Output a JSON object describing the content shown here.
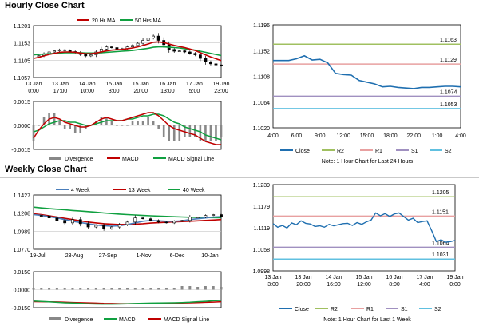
{
  "sections": {
    "hourly": {
      "title": "Hourly Close Chart"
    },
    "weekly": {
      "title": "Weekly Close Chart"
    }
  },
  "colors": {
    "ma_short": "#c00000",
    "ma_long": "#10a040",
    "close": "#1f6fb0",
    "r2": "#a0c060",
    "r1": "#e8a0a0",
    "s1": "#a090c0",
    "s2": "#60c0e0",
    "divergence": "#888888",
    "week4": "#4a7ebb"
  },
  "chart_data": [
    {
      "id": "hourly_price",
      "type": "candlestick",
      "ylim": [
        1.1057,
        1.1201
      ],
      "yticks": [
        "1.1201",
        "1.1153",
        "1.1105",
        "1.1057"
      ],
      "x_ticks": [
        "13 Jan\n0:00",
        "13 Jan\n17:00",
        "14 Jan\n10:00",
        "15 Jan\n3:00",
        "15 Jan\n20:00",
        "16 Jan\n13:00",
        "17 Jan\n5:00",
        "19 Jan\n23:00"
      ],
      "legend": [
        "20 Hr MA",
        "50 Hrs MA"
      ],
      "close": [
        1.1115,
        1.1118,
        1.1123,
        1.1128,
        1.1131,
        1.1134,
        1.1132,
        1.1129,
        1.1126,
        1.1121,
        1.1117,
        1.112,
        1.1128,
        1.1136,
        1.1142,
        1.114,
        1.1135,
        1.1137,
        1.1142,
        1.1146,
        1.1152,
        1.116,
        1.1167,
        1.1172,
        1.116,
        1.1148,
        1.1135,
        1.113,
        1.1131,
        1.1128,
        1.1124,
        1.112,
        1.111,
        1.11,
        1.1095,
        1.1092,
        1.1089
      ],
      "ma20": [
        1.111,
        1.1113,
        1.1117,
        1.1121,
        1.1124,
        1.1127,
        1.1128,
        1.1128,
        1.1127,
        1.1125,
        1.1123,
        1.1123,
        1.1125,
        1.1128,
        1.1131,
        1.1133,
        1.1134,
        1.1135,
        1.1137,
        1.1139,
        1.1142,
        1.1146,
        1.115,
        1.1155,
        1.1156,
        1.1154,
        1.115,
        1.1146,
        1.1143,
        1.114,
        1.1136,
        1.1132,
        1.1126,
        1.112,
        1.1114,
        1.1109,
        1.1104
      ],
      "ma50": [
        1.112,
        1.1121,
        1.1122,
        1.1123,
        1.1124,
        1.1125,
        1.1126,
        1.1126,
        1.1126,
        1.1126,
        1.1125,
        1.1125,
        1.1125,
        1.1126,
        1.1127,
        1.1128,
        1.1129,
        1.113,
        1.1131,
        1.1132,
        1.1134,
        1.1136,
        1.1138,
        1.1141,
        1.1142,
        1.1142,
        1.1141,
        1.114,
        1.1139,
        1.1137,
        1.1135,
        1.1133,
        1.113,
        1.1127,
        1.1124,
        1.1121,
        1.1118
      ]
    },
    {
      "id": "hourly_macd",
      "type": "line+bar",
      "ylim": [
        -0.0015,
        0.0015
      ],
      "yticks": [
        "0.0015",
        "0.0000",
        "-0.0015"
      ],
      "legend": [
        "Divergence",
        "MACD",
        "MACD Signal Line"
      ],
      "macd": [
        -0.0008,
        -0.0003,
        0.0001,
        0.0004,
        0.0005,
        0.0004,
        0.0002,
        0.0001,
        0.0,
        -0.0001,
        -0.0001,
        0.0,
        0.0002,
        0.0004,
        0.0005,
        0.0004,
        0.0003,
        0.0003,
        0.0004,
        0.0005,
        0.0006,
        0.0007,
        0.0008,
        0.0008,
        0.0006,
        0.0003,
        0.0,
        -0.0002,
        -0.0003,
        -0.0004,
        -0.0005,
        -0.0006,
        -0.0008,
        -0.001,
        -0.0011,
        -0.0012,
        -0.0012
      ],
      "signal": [
        -0.0004,
        -0.0003,
        -0.0001,
        0.0001,
        0.0002,
        0.0003,
        0.0003,
        0.0002,
        0.0002,
        0.0001,
        0.0,
        0.0,
        0.0001,
        0.0002,
        0.0003,
        0.0003,
        0.0003,
        0.0003,
        0.0004,
        0.0004,
        0.0005,
        0.0006,
        0.0006,
        0.0007,
        0.0007,
        0.0006,
        0.0004,
        0.0002,
        0.0001,
        -0.0001,
        -0.0002,
        -0.0003,
        -0.0004,
        -0.0006,
        -0.0007,
        -0.0008,
        -0.0009
      ]
    },
    {
      "id": "hourly_pivot",
      "type": "line",
      "ylim": [
        1.102,
        1.1196
      ],
      "yticks": [
        "1.1196",
        "1.1152",
        "1.1108",
        "1.1064",
        "1.1020"
      ],
      "x_ticks": [
        "4:00",
        "6:00",
        "9:00",
        "12:00",
        "15:00",
        "18:00",
        "22:00",
        "1:00",
        "4:00"
      ],
      "legend": [
        "Close",
        "R2",
        "R1",
        "S1",
        "S2"
      ],
      "note": "Note: 1 Hour Chart for Last 24 Hours",
      "levels": {
        "r2": 1.1163,
        "r1": 1.1129,
        "s1": 1.1074,
        "s2": 1.1053
      },
      "level_labels": {
        "r2": "1.1163",
        "r1": "1.1129",
        "s1": "1.1074",
        "s2": "1.1053"
      },
      "close": [
        1.1135,
        1.1135,
        1.1135,
        1.1138,
        1.1143,
        1.1136,
        1.1137,
        1.1131,
        1.1113,
        1.1111,
        1.111,
        1.1101,
        1.1098,
        1.1095,
        1.109,
        1.1091,
        1.1089,
        1.1088,
        1.1087,
        1.1089,
        1.1089,
        1.109,
        1.1091,
        1.1091,
        1.109
      ]
    },
    {
      "id": "weekly_price",
      "type": "candlestick",
      "ylim": [
        1.077,
        1.1427
      ],
      "yticks": [
        "1.1427",
        "1.1208",
        "1.0989",
        "1.0770"
      ],
      "x_ticks": [
        "19-Jul",
        "23-Aug",
        "27-Sep",
        "1-Nov",
        "6-Dec",
        "10-Jan"
      ],
      "legend": [
        "4 Week",
        "13 Week",
        "40 Week"
      ],
      "close": [
        1.118,
        1.1175,
        1.115,
        1.112,
        1.109,
        1.113,
        1.108,
        1.104,
        1.106,
        1.102,
        1.104,
        1.107,
        1.11,
        1.115,
        1.114,
        1.112,
        1.11,
        1.109,
        1.111,
        1.112,
        1.116,
        1.116,
        1.118,
        1.119,
        1.116
      ],
      "ma4": [
        1.119,
        1.118,
        1.1165,
        1.115,
        1.113,
        1.111,
        1.1095,
        1.108,
        1.1065,
        1.1055,
        1.105,
        1.1055,
        1.107,
        1.109,
        1.111,
        1.112,
        1.1115,
        1.111,
        1.111,
        1.1115,
        1.113,
        1.114,
        1.115,
        1.116,
        1.1165
      ],
      "ma13": [
        1.12,
        1.119,
        1.1175,
        1.116,
        1.1145,
        1.113,
        1.1115,
        1.11,
        1.109,
        1.108,
        1.1075,
        1.107,
        1.1072,
        1.1075,
        1.108,
        1.1088,
        1.1093,
        1.1098,
        1.1102,
        1.1106,
        1.111,
        1.1115,
        1.112,
        1.1125,
        1.113
      ],
      "ma40": [
        1.128,
        1.127,
        1.1262,
        1.1255,
        1.1248,
        1.124,
        1.1233,
        1.1226,
        1.1218,
        1.121,
        1.1203,
        1.1196,
        1.119,
        1.1185,
        1.118,
        1.1176,
        1.1172,
        1.1168,
        1.1164,
        1.1161,
        1.1158,
        1.1156,
        1.1155,
        1.1154,
        1.1153
      ]
    },
    {
      "id": "weekly_macd",
      "type": "line+bar",
      "ylim": [
        -0.015,
        0.015
      ],
      "yticks": [
        "0.0150",
        "0.0000",
        "-0.0150"
      ],
      "legend": [
        "Divergence",
        "MACD",
        "MACD Signal Line"
      ],
      "macd": [
        -0.0095,
        -0.0098,
        -0.0102,
        -0.0106,
        -0.011,
        -0.0112,
        -0.0115,
        -0.0118,
        -0.012,
        -0.0121,
        -0.0121,
        -0.012,
        -0.0118,
        -0.0116,
        -0.0114,
        -0.0113,
        -0.0112,
        -0.0111,
        -0.011,
        -0.0108,
        -0.0105,
        -0.0101,
        -0.0097,
        -0.0093,
        -0.009
      ],
      "signal": [
        -0.01,
        -0.0101,
        -0.0102,
        -0.0103,
        -0.0105,
        -0.0107,
        -0.0109,
        -0.0111,
        -0.0113,
        -0.0115,
        -0.0116,
        -0.0117,
        -0.0117,
        -0.0117,
        -0.0116,
        -0.0116,
        -0.0115,
        -0.0114,
        -0.0113,
        -0.0112,
        -0.011,
        -0.0108,
        -0.0106,
        -0.0104,
        -0.0101
      ]
    },
    {
      "id": "weekly_pivot",
      "type": "line",
      "ylim": [
        1.0998,
        1.1239
      ],
      "yticks": [
        "1.1239",
        "1.1179",
        "1.1119",
        "1.1058",
        "1.0998"
      ],
      "x_ticks": [
        "13 Jan\n3:00",
        "13 Jan\n20:00",
        "14 Jan\n16:00",
        "15 Jan\n12:00",
        "16 Jan\n8:00",
        "17 Jan\n4:00",
        "19 Jan\n0:00"
      ],
      "legend": [
        "Close",
        "R2",
        "R1",
        "S1",
        "S2"
      ],
      "note": "Note: 1 Hour Chart for Last 1 Week",
      "levels": {
        "r2": 1.1205,
        "r1": 1.1151,
        "s1": 1.1064,
        "s2": 1.1031
      },
      "level_labels": {
        "r2": "1.1205",
        "r1": "1.1151",
        "s1": "1.1064",
        "s2": "1.1031"
      },
      "close": [
        1.113,
        1.112,
        1.1125,
        1.1118,
        1.1132,
        1.1127,
        1.1138,
        1.1131,
        1.1129,
        1.1122,
        1.1124,
        1.112,
        1.1128,
        1.1124,
        1.1127,
        1.113,
        1.1131,
        1.1125,
        1.1133,
        1.1128,
        1.1135,
        1.114,
        1.116,
        1.1152,
        1.1158,
        1.115,
        1.1157,
        1.116,
        1.115,
        1.114,
        1.1145,
        1.1133,
        1.1136,
        1.1138,
        1.111,
        1.108,
        1.1085,
        1.1078,
        1.108,
        1.1083
      ]
    }
  ]
}
